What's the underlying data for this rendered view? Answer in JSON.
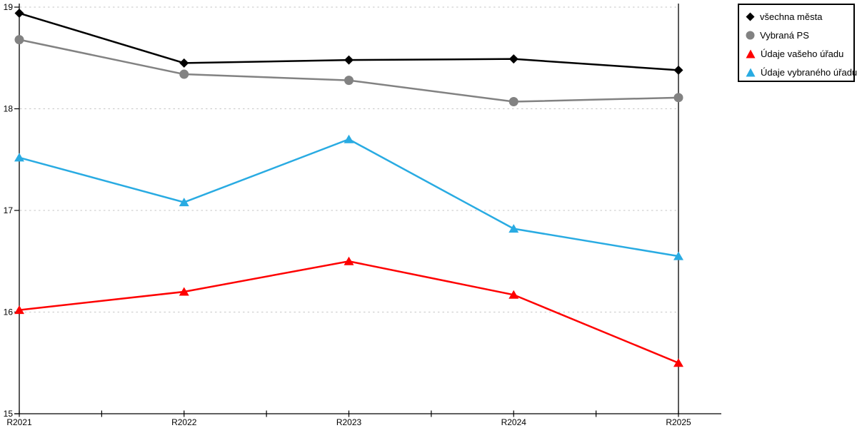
{
  "chart_data": {
    "type": "line",
    "title": "",
    "xlabel": "",
    "ylabel": "",
    "categories": [
      "R2021",
      "R2022",
      "R2023",
      "R2024",
      "R2025"
    ],
    "series": [
      {
        "name": "všechna města",
        "marker": "diamond",
        "color": "#000000",
        "values": [
          18.94,
          18.45,
          18.48,
          18.49,
          18.38
        ]
      },
      {
        "name": "Vybraná PS",
        "marker": "circle",
        "color": "#828282",
        "values": [
          18.68,
          18.34,
          18.28,
          18.07,
          18.11
        ]
      },
      {
        "name": "Údaje vašeho úřadu",
        "marker": "triangle",
        "color": "#fe0000",
        "values": [
          16.02,
          16.2,
          16.5,
          16.17,
          15.5
        ]
      },
      {
        "name": "Údaje vybraného úřadu",
        "marker": "triangle",
        "color": "#29abe2",
        "values": [
          17.52,
          17.08,
          17.7,
          16.82,
          16.55
        ]
      }
    ],
    "ylim": [
      15,
      19
    ],
    "yticks": [
      15,
      16,
      17,
      18,
      19
    ],
    "grid": "horizontal dashed",
    "gridline_color": "#c6c6c6",
    "axis_color": "#000000",
    "legend_position": "outside top-right"
  }
}
